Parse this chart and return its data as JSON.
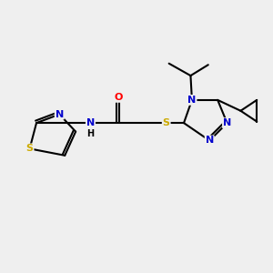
{
  "bg_color": "#efefef",
  "atom_colors": {
    "C": "#000000",
    "N": "#0000cc",
    "O": "#ff0000",
    "S": "#ccaa00",
    "H": "#000000"
  },
  "figsize": [
    3.0,
    3.0
  ],
  "dpi": 100
}
